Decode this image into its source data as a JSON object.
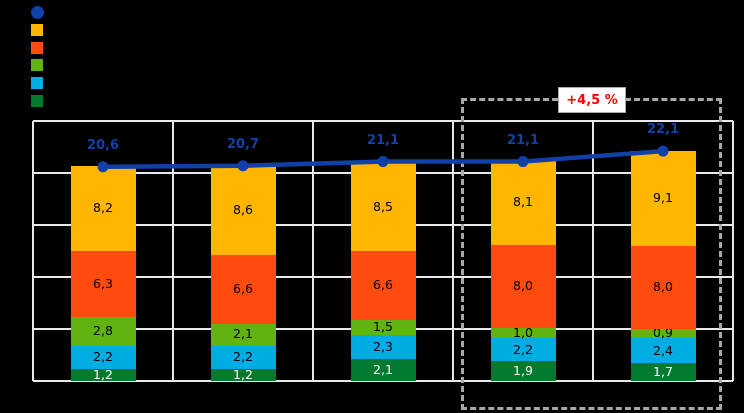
{
  "annotation": {
    "text": "+4,5 %",
    "color": "#FF0000"
  },
  "legend": {
    "position": "top-left",
    "items": [
      {
        "name": "total-line-marker",
        "swatch": "circle",
        "color": "#1141A8",
        "label": ""
      },
      {
        "name": "series-amber",
        "swatch": "square",
        "color": "#FFB600",
        "label": ""
      },
      {
        "name": "series-orange-red",
        "swatch": "square",
        "color": "#FF4B0D",
        "label": ""
      },
      {
        "name": "series-green",
        "swatch": "square",
        "color": "#61B40F",
        "label": ""
      },
      {
        "name": "series-cyan",
        "swatch": "square",
        "color": "#00ACE4",
        "label": ""
      },
      {
        "name": "series-dark-green",
        "swatch": "square",
        "color": "#037A30",
        "label": ""
      }
    ]
  },
  "chart_data": {
    "type": "bar",
    "subtype": "stacked-bars-with-total-line",
    "decimal_separator": ",",
    "background": "#000000",
    "grid": true,
    "gridline_color": "#E9E9E9",
    "ylim": [
      0,
      25
    ],
    "y_grid_step": 5,
    "categories": [
      "",
      "",
      "",
      "",
      ""
    ],
    "stack_order": "bottom-to-top",
    "series": [
      {
        "name": "dark-green-bottom",
        "color": "#037A30",
        "label_color": "#FFFFFF",
        "values": [
          1.2,
          1.2,
          2.1,
          1.9,
          1.7
        ]
      },
      {
        "name": "cyan",
        "color": "#00ACE4",
        "label_color": "#000000",
        "values": [
          2.2,
          2.2,
          2.3,
          2.2,
          2.4
        ]
      },
      {
        "name": "green",
        "color": "#61B40F",
        "label_color": "#000000",
        "values": [
          2.8,
          2.1,
          1.5,
          1.0,
          0.9
        ]
      },
      {
        "name": "orange-red",
        "color": "#FF4B0D",
        "label_color": "#000000",
        "values": [
          6.3,
          6.6,
          6.6,
          8.0,
          8.0
        ]
      },
      {
        "name": "amber",
        "color": "#FFB600",
        "label_color": "#000000",
        "values": [
          8.2,
          8.6,
          8.5,
          8.1,
          9.1
        ]
      }
    ],
    "line_series": {
      "name": "total",
      "color": "#1141A8",
      "values": [
        20.6,
        20.7,
        21.1,
        21.1,
        22.1
      ]
    },
    "highlight": {
      "category_indexes": [
        3,
        4
      ],
      "style": "dashed-box",
      "box_color": "#A8A8A8",
      "label": "+4,5 %"
    }
  }
}
